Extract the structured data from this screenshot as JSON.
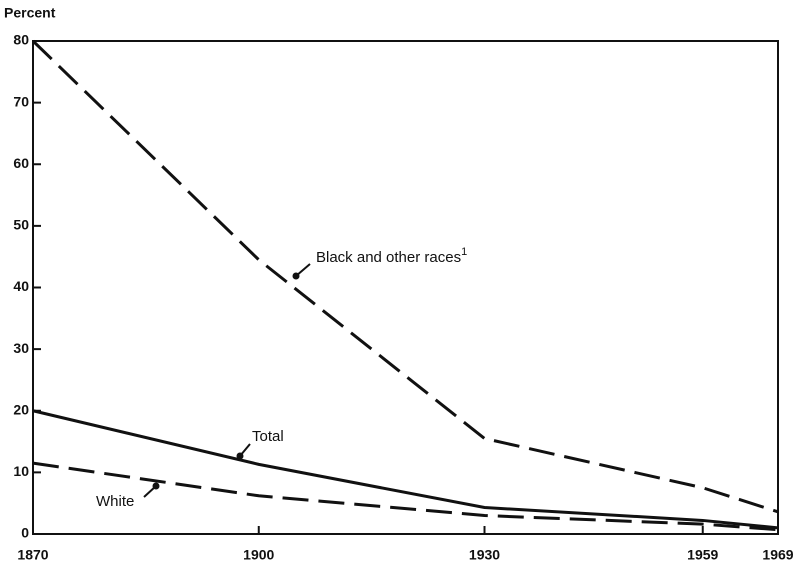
{
  "chart_data": {
    "type": "line",
    "y_label": "Percent",
    "x": [
      1870,
      1900,
      1930,
      1959,
      1969
    ],
    "xlim": [
      1870,
      1969
    ],
    "xticks": [
      1870,
      1900,
      1930,
      1959,
      1969
    ],
    "ylim": [
      0,
      80
    ],
    "yticks": [
      0,
      10,
      20,
      30,
      40,
      50,
      60,
      70,
      80
    ],
    "series": [
      {
        "name": "Black and other races",
        "superscript": "1",
        "color": "#111111",
        "dashed": true,
        "values": [
          80,
          44.5,
          15.5,
          7.5,
          3.6
        ]
      },
      {
        "name": "Total",
        "color": "#111111",
        "dashed": false,
        "values": [
          20,
          11.3,
          4.3,
          2.2,
          1.0
        ]
      },
      {
        "name": "White",
        "color": "#111111",
        "dashed": true,
        "values": [
          11.5,
          6.2,
          3.0,
          1.6,
          0.7
        ]
      }
    ]
  }
}
